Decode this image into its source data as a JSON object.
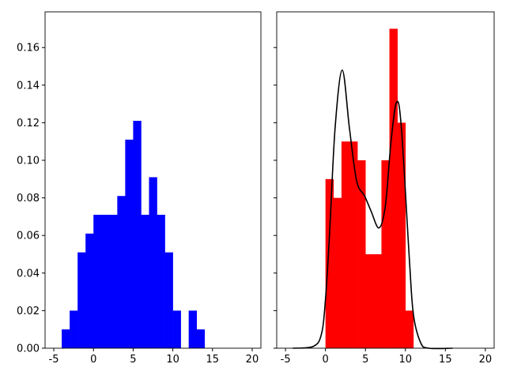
{
  "chart_data": [
    {
      "type": "bar",
      "panel": "left",
      "bar_color": "#0000ff",
      "bin_edges": [
        -4,
        -3,
        -2,
        -1,
        0,
        1,
        2,
        3,
        4,
        5,
        6,
        7,
        8,
        9,
        10,
        11,
        12,
        13,
        14
      ],
      "values": [
        0.01,
        0.02,
        0.051,
        0.061,
        0.071,
        0.071,
        0.071,
        0.081,
        0.111,
        0.121,
        0.071,
        0.091,
        0.071,
        0.051,
        0.02,
        0,
        0.02,
        0.01
      ],
      "xlim": [
        -6.1,
        21.1
      ],
      "ylim": [
        0,
        0.179
      ],
      "xticks": [
        "-5",
        "0",
        "5",
        "10",
        "15",
        "20"
      ],
      "yticks": [
        "0.00",
        "0.02",
        "0.04",
        "0.06",
        "0.08",
        "0.10",
        "0.12",
        "0.14",
        "0.16"
      ],
      "grid": false
    },
    {
      "type": "bar",
      "panel": "right",
      "bar_color": "#ff0000",
      "bin_edges": [
        0,
        1,
        2,
        3,
        4,
        5,
        6,
        7,
        8,
        9,
        10,
        11
      ],
      "values": [
        0.09,
        0.08,
        0.11,
        0.11,
        0.1,
        0.05,
        0.05,
        0.1,
        0.17,
        0.12,
        0.02
      ],
      "line": {
        "type": "line",
        "color": "#000000",
        "x": [
          -4.1,
          -1.5,
          -0.5,
          0.0,
          0.5,
          1.2,
          2.1,
          3.0,
          3.9,
          4.9,
          5.7,
          6.7,
          7.5,
          8.2,
          8.9,
          9.5,
          10.5,
          11.0,
          11.9,
          12.9,
          15.9
        ],
        "y": [
          0,
          0.001,
          0.0076,
          0.026,
          0.06,
          0.117,
          0.148,
          0.117,
          0.089,
          0.081,
          0.073,
          0.064,
          0.076,
          0.11,
          0.131,
          0.117,
          0.047,
          0.018,
          0.003,
          0,
          0
        ]
      },
      "xlim": [
        -6.1,
        21.1
      ],
      "ylim": [
        0,
        0.179
      ],
      "xticks": [
        "-5",
        "0",
        "5",
        "10",
        "15",
        "20"
      ],
      "yticks_labels_visible": false,
      "grid": false
    }
  ]
}
